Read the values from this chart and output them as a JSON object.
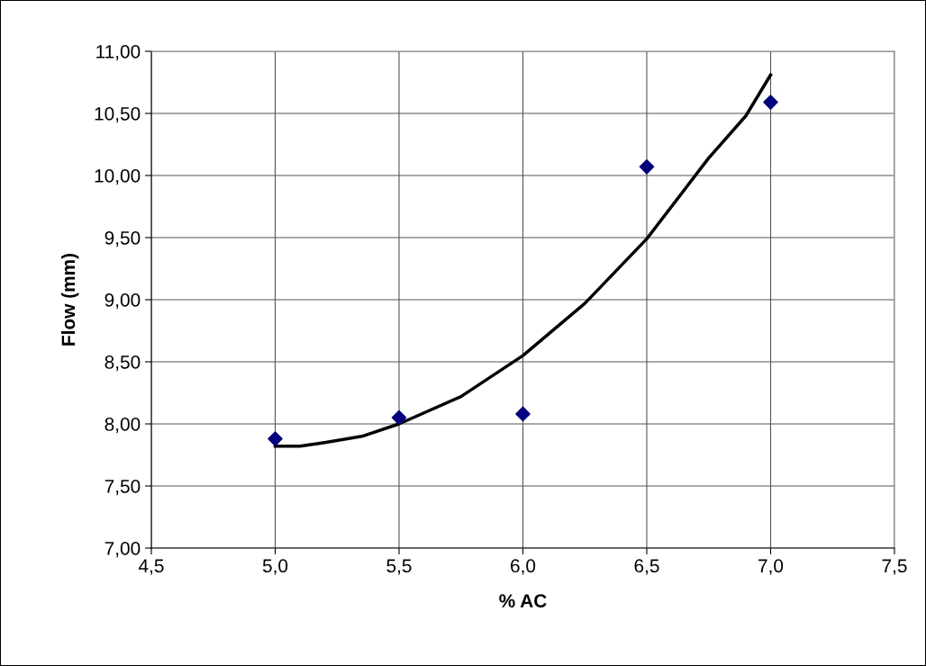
{
  "chart_data": {
    "type": "scatter",
    "xlabel": "% AC",
    "ylabel": "Flow (mm)",
    "series": [
      {
        "color": "#000080",
        "marker": "diamond",
        "x": [
          5.0,
          5.5,
          6.0,
          6.5,
          7.0
        ],
        "values": [
          7.88,
          8.05,
          8.08,
          10.07,
          10.59
        ]
      },
      {
        "type": "line",
        "color": "#000000",
        "marker": "none",
        "line_style": "solid",
        "x": [
          5.0,
          5.1,
          5.2,
          5.35,
          5.5,
          5.75,
          6.0,
          6.25,
          6.5,
          6.75,
          6.9,
          7.0
        ],
        "values": [
          7.82,
          7.82,
          7.85,
          7.9,
          8.0,
          8.22,
          8.55,
          8.97,
          9.49,
          10.14,
          10.48,
          10.81
        ]
      }
    ],
    "xlim": [
      4.5,
      7.5
    ],
    "xticks": [
      {
        "value": 4.5,
        "label": "4,5"
      },
      {
        "value": 5.0,
        "label": "5,0"
      },
      {
        "value": 5.5,
        "label": "5,5"
      },
      {
        "value": 6.0,
        "label": "6,0"
      },
      {
        "value": 6.5,
        "label": "6,5"
      },
      {
        "value": 7.0,
        "label": "7,0"
      },
      {
        "value": 7.5,
        "label": "7,5"
      }
    ],
    "ylim": [
      7.0,
      11.0
    ],
    "yticks": [
      {
        "value": 7.0,
        "label": "7,00"
      },
      {
        "value": 7.5,
        "label": "7,50"
      },
      {
        "value": 8.0,
        "label": "8,00"
      },
      {
        "value": 8.5,
        "label": "8,50"
      },
      {
        "value": 9.0,
        "label": "9,00"
      },
      {
        "value": 9.5,
        "label": "9,50"
      },
      {
        "value": 10.0,
        "label": "10,00"
      },
      {
        "value": 10.5,
        "label": "10,50"
      },
      {
        "value": 11.0,
        "label": "11,00"
      }
    ],
    "grid": true
  }
}
